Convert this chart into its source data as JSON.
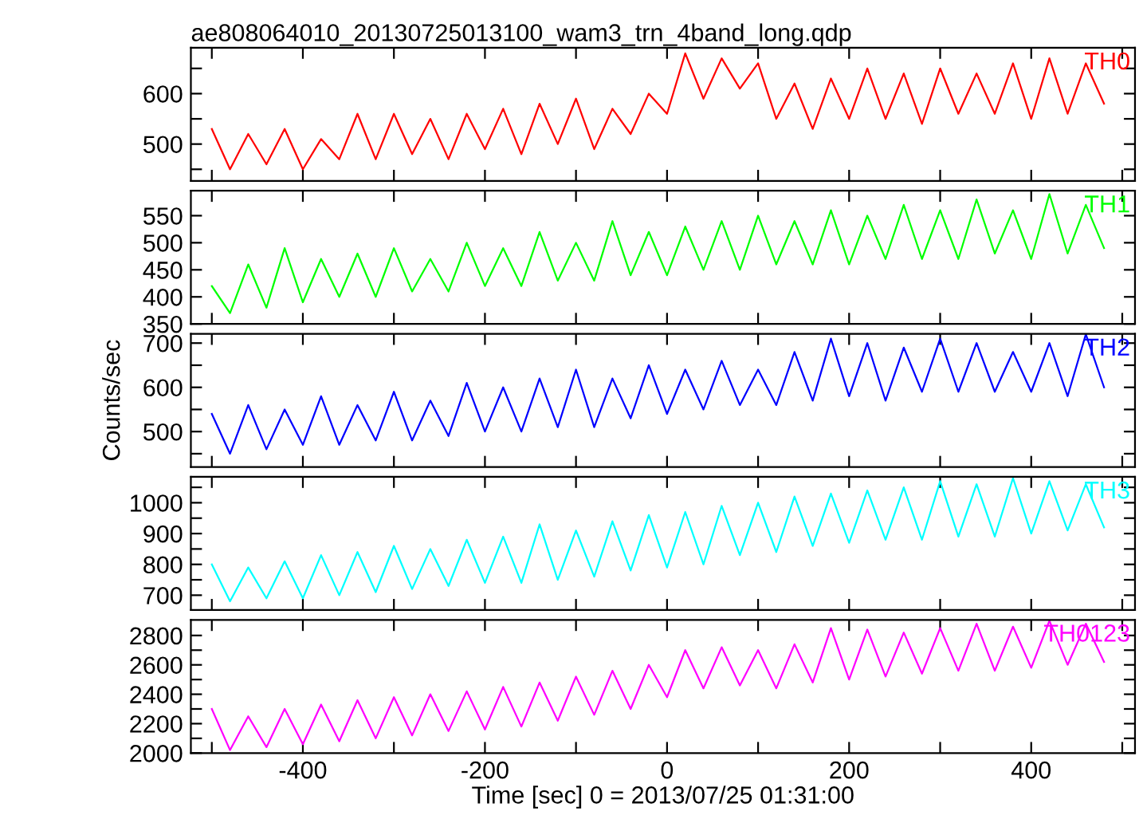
{
  "chart_data": [
    {
      "type": "line",
      "title": "ae808064010_20130725013100_wam3_trn_4band_long.qdp",
      "tick_labels": "y",
      "grid": false,
      "legend": false,
      "x": [
        -500,
        -480,
        -460,
        -440,
        -420,
        -400,
        -380,
        -360,
        -340,
        -320,
        -300,
        -280,
        -260,
        -240,
        -220,
        -200,
        -180,
        -160,
        -140,
        -120,
        -100,
        -80,
        -60,
        -40,
        -20,
        0,
        20,
        40,
        60,
        80,
        100,
        120,
        140,
        160,
        180,
        200,
        220,
        240,
        260,
        280,
        300,
        320,
        340,
        360,
        380,
        400,
        420,
        440,
        460,
        480
      ],
      "xlim": [
        -523,
        514
      ],
      "xticks": [
        {
          "value": -500,
          "label": null
        },
        -400,
        {
          "value": -300,
          "label": null
        },
        -200,
        {
          "value": -100,
          "label": null
        },
        0,
        {
          "value": 100,
          "label": null
        },
        200,
        {
          "value": 300,
          "label": null
        },
        400,
        {
          "value": 500,
          "label": null
        }
      ],
      "ylim": [
        427,
        691
      ],
      "yticks": [
        {
          "value": 450,
          "label": null
        },
        500,
        {
          "value": 550,
          "label": null
        },
        600,
        {
          "value": 650,
          "label": null
        }
      ],
      "series": [
        {
          "name": "TH0",
          "color": "#ff0000",
          "values": [
            530,
            450,
            520,
            460,
            530,
            450,
            510,
            470,
            560,
            470,
            560,
            480,
            550,
            470,
            560,
            490,
            570,
            480,
            580,
            500,
            590,
            490,
            570,
            520,
            600,
            560,
            680,
            590,
            670,
            610,
            660,
            550,
            620,
            530,
            630,
            550,
            650,
            550,
            640,
            540,
            650,
            560,
            640,
            560,
            660,
            550,
            670,
            560,
            660,
            580
          ]
        }
      ]
    },
    {
      "type": "line",
      "tick_labels": "y",
      "grid": false,
      "legend": false,
      "x": [
        -500,
        -480,
        -460,
        -440,
        -420,
        -400,
        -380,
        -360,
        -340,
        -320,
        -300,
        -280,
        -260,
        -240,
        -220,
        -200,
        -180,
        -160,
        -140,
        -120,
        -100,
        -80,
        -60,
        -40,
        -20,
        0,
        20,
        40,
        60,
        80,
        100,
        120,
        140,
        160,
        180,
        200,
        220,
        240,
        260,
        280,
        300,
        320,
        340,
        360,
        380,
        400,
        420,
        440,
        460,
        480
      ],
      "xlim": [
        -523,
        514
      ],
      "xticks": [
        {
          "value": -500,
          "label": null
        },
        -400,
        {
          "value": -300,
          "label": null
        },
        -200,
        {
          "value": -100,
          "label": null
        },
        0,
        {
          "value": 100,
          "label": null
        },
        200,
        {
          "value": 300,
          "label": null
        },
        400,
        {
          "value": 500,
          "label": null
        }
      ],
      "ylim": [
        350,
        596
      ],
      "yticks": [
        350,
        400,
        450,
        500,
        550
      ],
      "series": [
        {
          "name": "TH1",
          "color": "#00ff00",
          "values": [
            420,
            370,
            460,
            380,
            490,
            390,
            470,
            400,
            480,
            400,
            490,
            410,
            470,
            410,
            500,
            420,
            490,
            420,
            520,
            430,
            500,
            430,
            540,
            440,
            520,
            440,
            530,
            450,
            540,
            450,
            550,
            460,
            540,
            460,
            560,
            460,
            550,
            470,
            570,
            470,
            560,
            470,
            580,
            480,
            560,
            470,
            590,
            480,
            570,
            490
          ]
        }
      ]
    },
    {
      "type": "line",
      "ylabel": "Counts/sec",
      "tick_labels": "y",
      "grid": false,
      "legend": false,
      "x": [
        -500,
        -480,
        -460,
        -440,
        -420,
        -400,
        -380,
        -360,
        -340,
        -320,
        -300,
        -280,
        -260,
        -240,
        -220,
        -200,
        -180,
        -160,
        -140,
        -120,
        -100,
        -80,
        -60,
        -40,
        -20,
        0,
        20,
        40,
        60,
        80,
        100,
        120,
        140,
        160,
        180,
        200,
        220,
        240,
        260,
        280,
        300,
        320,
        340,
        360,
        380,
        400,
        420,
        440,
        460,
        480
      ],
      "xlim": [
        -523,
        514
      ],
      "xticks": [
        {
          "value": -500,
          "label": null
        },
        -400,
        {
          "value": -300,
          "label": null
        },
        -200,
        {
          "value": -100,
          "label": null
        },
        0,
        {
          "value": 100,
          "label": null
        },
        200,
        {
          "value": 300,
          "label": null
        },
        400,
        {
          "value": 500,
          "label": null
        }
      ],
      "ylim": [
        420,
        721
      ],
      "yticks": [
        {
          "value": 450,
          "label": null
        },
        500,
        {
          "value": 550,
          "label": null
        },
        600,
        {
          "value": 650,
          "label": null
        },
        700
      ],
      "series": [
        {
          "name": "TH2",
          "color": "#0000ff",
          "values": [
            540,
            450,
            560,
            460,
            550,
            470,
            580,
            470,
            560,
            480,
            590,
            480,
            570,
            490,
            610,
            500,
            600,
            500,
            620,
            510,
            640,
            510,
            620,
            530,
            650,
            540,
            640,
            550,
            660,
            560,
            640,
            560,
            680,
            570,
            710,
            580,
            700,
            570,
            690,
            590,
            710,
            590,
            700,
            590,
            680,
            590,
            700,
            580,
            720,
            600
          ]
        }
      ]
    },
    {
      "type": "line",
      "tick_labels": "y",
      "grid": false,
      "legend": false,
      "x": [
        -500,
        -480,
        -460,
        -440,
        -420,
        -400,
        -380,
        -360,
        -340,
        -320,
        -300,
        -280,
        -260,
        -240,
        -220,
        -200,
        -180,
        -160,
        -140,
        -120,
        -100,
        -80,
        -60,
        -40,
        -20,
        0,
        20,
        40,
        60,
        80,
        100,
        120,
        140,
        160,
        180,
        200,
        220,
        240,
        260,
        280,
        300,
        320,
        340,
        360,
        380,
        400,
        420,
        440,
        460,
        480
      ],
      "xlim": [
        -523,
        514
      ],
      "xticks": [
        {
          "value": -500,
          "label": null
        },
        -400,
        {
          "value": -300,
          "label": null
        },
        -200,
        {
          "value": -100,
          "label": null
        },
        0,
        {
          "value": 100,
          "label": null
        },
        200,
        {
          "value": 300,
          "label": null
        },
        400,
        {
          "value": 500,
          "label": null
        }
      ],
      "ylim": [
        652,
        1084
      ],
      "yticks": [
        700,
        {
          "value": 750,
          "label": null
        },
        800,
        {
          "value": 850,
          "label": null
        },
        900,
        {
          "value": 950,
          "label": null
        },
        1000,
        {
          "value": 1050,
          "label": null
        }
      ],
      "series": [
        {
          "name": "TH3",
          "color": "#00ffff",
          "values": [
            800,
            680,
            790,
            690,
            810,
            690,
            830,
            700,
            840,
            710,
            860,
            720,
            850,
            730,
            880,
            740,
            890,
            740,
            930,
            750,
            910,
            760,
            940,
            780,
            960,
            790,
            970,
            800,
            990,
            830,
            1000,
            840,
            1020,
            860,
            1030,
            870,
            1040,
            880,
            1050,
            880,
            1070,
            890,
            1060,
            890,
            1080,
            900,
            1070,
            910,
            1060,
            920
          ]
        }
      ]
    },
    {
      "type": "line",
      "xlabel": "Time [sec] 0 = 2013/07/25 01:31:00",
      "grid": false,
      "legend": false,
      "x": [
        -500,
        -480,
        -460,
        -440,
        -420,
        -400,
        -380,
        -360,
        -340,
        -320,
        -300,
        -280,
        -260,
        -240,
        -220,
        -200,
        -180,
        -160,
        -140,
        -120,
        -100,
        -80,
        -60,
        -40,
        -20,
        0,
        20,
        40,
        60,
        80,
        100,
        120,
        140,
        160,
        180,
        200,
        220,
        240,
        260,
        280,
        300,
        320,
        340,
        360,
        380,
        400,
        420,
        440,
        460,
        480
      ],
      "xlim": [
        -523,
        514
      ],
      "xticks": [
        {
          "value": -500,
          "label": null
        },
        -400,
        {
          "value": -300,
          "label": null
        },
        -200,
        {
          "value": -100,
          "label": null
        },
        0,
        {
          "value": 100,
          "label": null
        },
        200,
        {
          "value": 300,
          "label": null
        },
        400,
        {
          "value": 500,
          "label": null
        }
      ],
      "ylim": [
        2000,
        2906
      ],
      "yticks": [
        2000,
        {
          "value": 2100,
          "label": null
        },
        2200,
        {
          "value": 2300,
          "label": null
        },
        2400,
        {
          "value": 2500,
          "label": null
        },
        2600,
        {
          "value": 2700,
          "label": null
        },
        2800
      ],
      "series": [
        {
          "name": "TH0123",
          "color": "#ff00ff",
          "values": [
            2300,
            2020,
            2250,
            2040,
            2300,
            2060,
            2330,
            2080,
            2360,
            2100,
            2380,
            2120,
            2400,
            2150,
            2420,
            2160,
            2450,
            2180,
            2480,
            2220,
            2520,
            2260,
            2560,
            2300,
            2600,
            2380,
            2700,
            2440,
            2720,
            2460,
            2700,
            2440,
            2740,
            2480,
            2850,
            2500,
            2840,
            2520,
            2820,
            2540,
            2850,
            2560,
            2880,
            2560,
            2860,
            2580,
            2900,
            2600,
            2880,
            2620
          ]
        }
      ]
    }
  ]
}
